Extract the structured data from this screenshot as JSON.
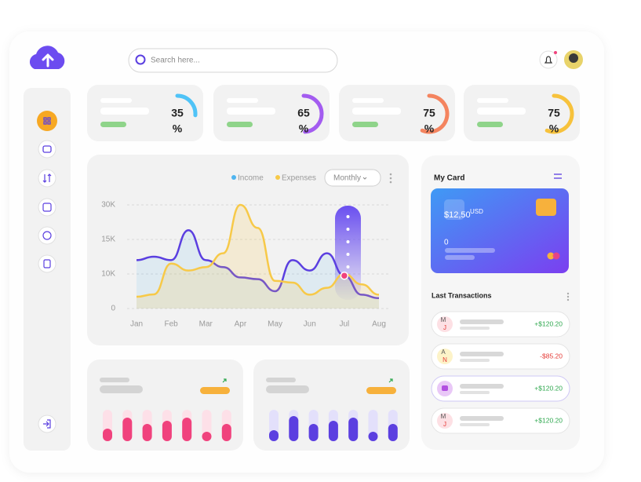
{
  "search": {
    "placeholder": "Search here..."
  },
  "stats": [
    {
      "value": 35,
      "unit": "%",
      "color": "#4fc3f7"
    },
    {
      "value": 65,
      "unit": "%",
      "color": "#a35cf0"
    },
    {
      "value": 75,
      "unit": "%",
      "color": "#f4845f"
    },
    {
      "value": 75,
      "unit": "%",
      "color": "#f7c23c"
    }
  ],
  "chart_data": {
    "type": "line",
    "categories": [
      "Jan",
      null,
      "Feb",
      null,
      "Mar",
      null,
      "Apr",
      null,
      "May",
      null,
      "Jun",
      null,
      "Jul",
      null,
      "Aug"
    ],
    "series": [
      {
        "name": "Income",
        "color": "#5b3fe0",
        "marker_color": "#4fb5f0",
        "values": [
          12000,
          12500,
          12000,
          19000,
          12000,
          11000,
          9000,
          8500,
          5000,
          12000,
          10500,
          13000,
          9500,
          4000,
          3000
        ]
      },
      {
        "name": "Expenses",
        "color": "#f7c948",
        "marker_color": "#f7c948",
        "values": [
          3400,
          4100,
          11500,
          10500,
          11000,
          13000,
          30000,
          20000,
          8000,
          7500,
          4000,
          6000,
          10000,
          7000,
          4000
        ]
      }
    ],
    "yticks": [
      {
        "value": 0,
        "label": "0"
      },
      {
        "value": 10000,
        "label": "10K"
      },
      {
        "value": 15000,
        "label": "15K"
      },
      {
        "value": 30000,
        "label": "30K"
      }
    ],
    "ylim": [
      0,
      30000
    ],
    "period": "Monthly",
    "grid": true
  },
  "mini_charts": [
    {
      "color": "#f0427d",
      "track": "#fde0e8",
      "values": [
        40,
        75,
        55,
        65,
        75,
        30,
        55
      ]
    },
    {
      "color": "#5b3fe0",
      "track": "#e3e0fb",
      "values": [
        35,
        80,
        55,
        65,
        75,
        30,
        55
      ]
    }
  ],
  "card": {
    "title": "My Card",
    "balance": "$12,50",
    "currency": "USD",
    "number": "0"
  },
  "transactions": {
    "title": "Last Transactions",
    "items": [
      {
        "avatar": [
          "M",
          "J"
        ],
        "amount": "+$120.20",
        "color": "#2fa84f",
        "avatar_bg": "#fde0e4"
      },
      {
        "avatar": [
          "A",
          "N"
        ],
        "amount": "-$85.20",
        "color": "#e53935",
        "avatar_bg": "#fdf3c8"
      },
      {
        "avatar": [],
        "amount": "+$120.20",
        "color": "#2fa84f",
        "avatar_bg": "#e9c8f7"
      },
      {
        "avatar": [
          "M",
          "J"
        ],
        "amount": "+$120.20",
        "color": "#2fa84f",
        "avatar_bg": "#fde0e4"
      }
    ]
  }
}
